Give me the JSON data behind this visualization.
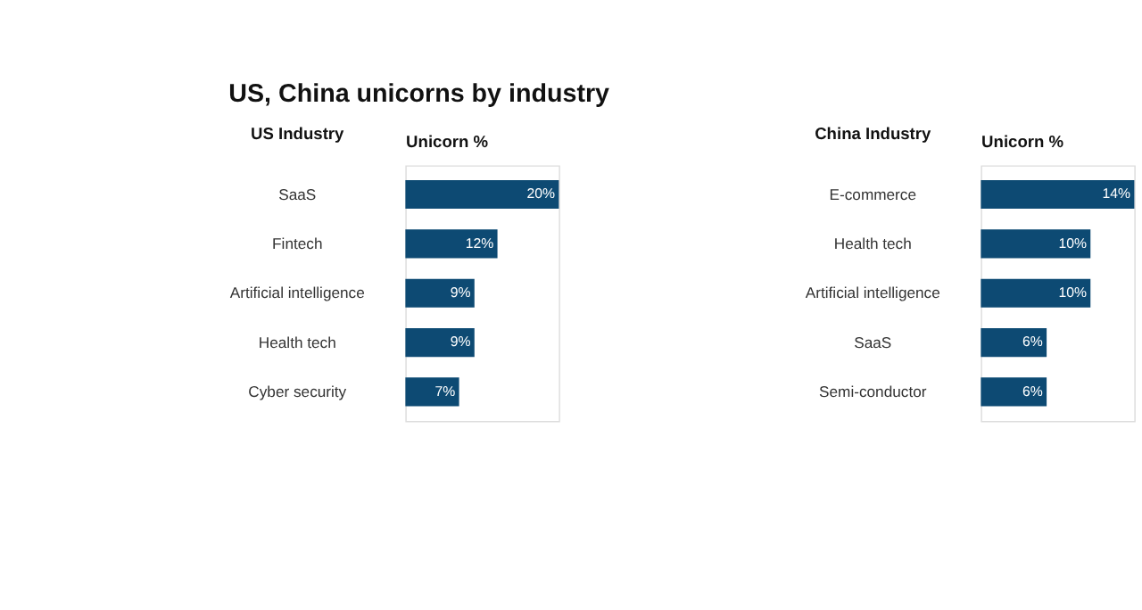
{
  "chart_data": [
    {
      "type": "bar",
      "orientation": "horizontal",
      "title": "US, China unicorns by industry",
      "ylabel": "US Industry",
      "xlabel": "Unicorn %",
      "categories": [
        "SaaS",
        "Fintech",
        "Artificial intelligence",
        "Health tech",
        "Cyber security"
      ],
      "values": [
        20,
        12,
        9,
        9,
        7
      ],
      "value_labels": [
        "20%",
        "12%",
        "9%",
        "9%",
        "7%"
      ],
      "color": "#0d4a73"
    },
    {
      "type": "bar",
      "orientation": "horizontal",
      "ylabel": "China Industry",
      "xlabel": "Unicorn %",
      "categories": [
        "E-commerce",
        "Health tech",
        "Artificial intelligence",
        "SaaS",
        "Semi-conductor"
      ],
      "values": [
        14,
        10,
        10,
        6,
        6
      ],
      "value_labels": [
        "14%",
        "10%",
        "10%",
        "6%",
        "6%"
      ],
      "color": "#0d4a73"
    }
  ]
}
